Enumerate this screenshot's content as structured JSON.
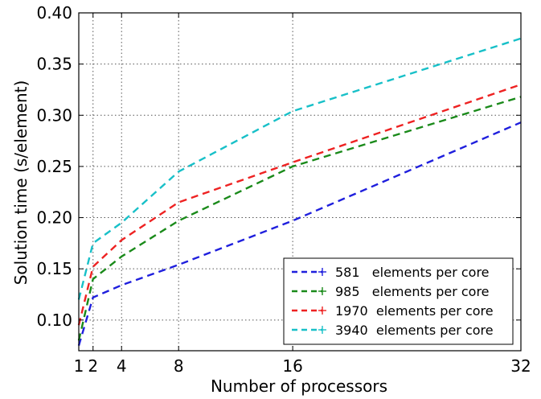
{
  "chart_data": {
    "type": "line",
    "xlabel": "Number of processors",
    "ylabel": "Solution time (s/element)",
    "xlim": [
      1,
      32
    ],
    "ylim": [
      0.07,
      0.4
    ],
    "x_ticks": [
      1,
      2,
      4,
      8,
      16,
      32
    ],
    "x_tick_labels": [
      "1",
      "2",
      "4",
      "8",
      "16",
      "32"
    ],
    "y_ticks": [
      0.1,
      0.15,
      0.2,
      0.25,
      0.3,
      0.35,
      0.4
    ],
    "y_tick_labels": [
      "0.10",
      "0.15",
      "0.20",
      "0.25",
      "0.30",
      "0.35",
      "0.40"
    ],
    "grid": true,
    "legend_position": "lower-right",
    "x": [
      1,
      2,
      4,
      8,
      16,
      32
    ],
    "series": [
      {
        "name": "581   elements per core",
        "color": "#1f1fdd",
        "values": [
          0.075,
          0.122,
          0.134,
          0.154,
          0.197,
          0.293
        ]
      },
      {
        "name": "985   elements per core",
        "color": "#1a8a1a",
        "values": [
          0.08,
          0.14,
          0.162,
          0.197,
          0.25,
          0.318
        ]
      },
      {
        "name": "1970  elements per core",
        "color": "#ee2222",
        "values": [
          0.095,
          0.152,
          0.178,
          0.215,
          0.254,
          0.33
        ]
      },
      {
        "name": "3940  elements per core",
        "color": "#18c0c8",
        "values": [
          0.12,
          0.175,
          0.195,
          0.245,
          0.304,
          0.375
        ]
      }
    ]
  }
}
